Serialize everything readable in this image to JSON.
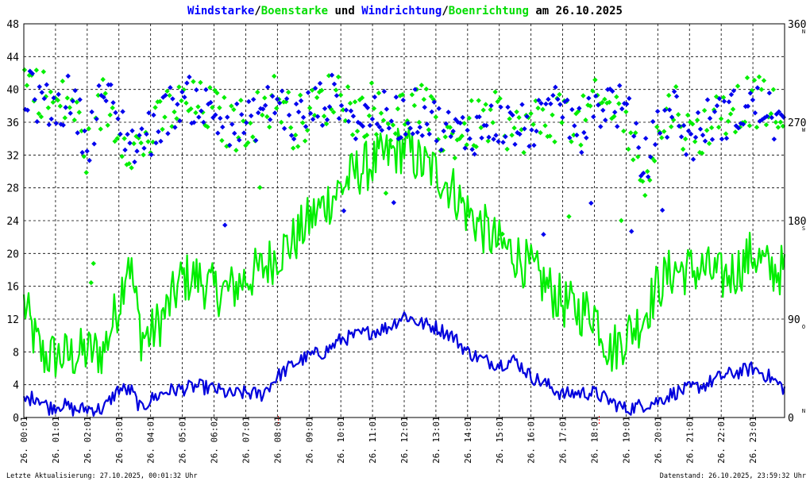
{
  "chart_data": {
    "type": "line",
    "title_parts": [
      {
        "text": "Windstarke",
        "color": "#0000ff"
      },
      {
        "text": "/",
        "color": "#000000"
      },
      {
        "text": "Boenstarke",
        "color": "#00dd00"
      },
      {
        "text": " und ",
        "color": "#000000"
      },
      {
        "text": "Windrichtung",
        "color": "#0000ff"
      },
      {
        "text": "/",
        "color": "#000000"
      },
      {
        "text": "Boenrichtung",
        "color": "#00dd00"
      },
      {
        "text": " am 26.10.2025",
        "color": "#000000"
      }
    ],
    "ylim_left": [
      0,
      48
    ],
    "yticks_left": [
      0,
      4,
      8,
      12,
      16,
      20,
      24,
      28,
      32,
      36,
      40,
      44,
      48
    ],
    "ylim_right": [
      0,
      360
    ],
    "yticks_right": [
      0,
      90,
      180,
      270,
      360
    ],
    "compass_labels": [
      {
        "deg": 0,
        "label": "N"
      },
      {
        "deg": 90,
        "label": "O"
      },
      {
        "deg": 180,
        "label": "S"
      },
      {
        "deg": 270,
        "label": "W"
      },
      {
        "deg": 360,
        "label": "N"
      }
    ],
    "xlim_hours": [
      0,
      24
    ],
    "x_tick_labels": [
      "26. 00:01",
      "26. 01:01",
      "26. 02:01",
      "26. 03:01",
      "26. 04:01",
      "26. 05:01",
      "26. 06:02",
      "26. 07:01",
      "26. 08:01",
      "26. 09:01",
      "26. 10:01",
      "26. 11:01",
      "26. 12:01",
      "26. 13:01",
      "26. 14:01",
      "26. 15:01",
      "26. 16:01",
      "26. 17:01",
      "26. 18:01",
      "26. 19:01",
      "26. 20:01",
      "26. 21:01",
      "26. 22:01",
      "26. 23:01"
    ],
    "grid": true,
    "colors": {
      "wind": "#0000dd",
      "gust": "#00ee00",
      "wind_dir": "#0000ee",
      "gust_dir": "#00ee00",
      "marker": "#ff0000"
    },
    "series": [
      {
        "name": "Windstarke",
        "anchors": [
          [
            0,
            2
          ],
          [
            0.4,
            2.6
          ],
          [
            0.8,
            1.2
          ],
          [
            1.2,
            1.6
          ],
          [
            1.6,
            0.9
          ],
          [
            2,
            1.1
          ],
          [
            2.5,
            1
          ],
          [
            3,
            3.5
          ],
          [
            3.4,
            3.2
          ],
          [
            3.7,
            1
          ],
          [
            4,
            2.2
          ],
          [
            4.5,
            3.2
          ],
          [
            5,
            3.5
          ],
          [
            5.5,
            3.8
          ],
          [
            6,
            3.5
          ],
          [
            6.5,
            2.8
          ],
          [
            7,
            3
          ],
          [
            7.5,
            2.8
          ],
          [
            8,
            5
          ],
          [
            8.5,
            6.5
          ],
          [
            9,
            7.5
          ],
          [
            9.5,
            8
          ],
          [
            10,
            9.5
          ],
          [
            10.5,
            10
          ],
          [
            11,
            10.5
          ],
          [
            11.5,
            11
          ],
          [
            12,
            12.5
          ],
          [
            12.5,
            11.5
          ],
          [
            13,
            11
          ],
          [
            13.5,
            10
          ],
          [
            14,
            8
          ],
          [
            14.5,
            7
          ],
          [
            15,
            6.5
          ],
          [
            15.5,
            7
          ],
          [
            16,
            5
          ],
          [
            16.5,
            4
          ],
          [
            17,
            2.8
          ],
          [
            17.5,
            3
          ],
          [
            18,
            3
          ],
          [
            18.5,
            2
          ],
          [
            19,
            1
          ],
          [
            19.5,
            1.5
          ],
          [
            20,
            2
          ],
          [
            20.5,
            3
          ],
          [
            21,
            3.5
          ],
          [
            21.5,
            4
          ],
          [
            22,
            5
          ],
          [
            22.5,
            5.5
          ],
          [
            23,
            6
          ],
          [
            23.5,
            5
          ],
          [
            24,
            3.5
          ]
        ],
        "amplitude": 0.9
      },
      {
        "name": "Boenstarke",
        "anchors": [
          [
            0,
            14
          ],
          [
            0.3,
            10
          ],
          [
            0.6,
            7.5
          ],
          [
            1,
            7.5
          ],
          [
            1.5,
            7.5
          ],
          [
            2,
            8
          ],
          [
            2.5,
            8
          ],
          [
            3,
            14
          ],
          [
            3.3,
            20
          ],
          [
            3.7,
            10
          ],
          [
            4,
            10
          ],
          [
            4.5,
            13
          ],
          [
            5,
            17
          ],
          [
            5.5,
            17
          ],
          [
            6,
            15.5
          ],
          [
            6.5,
            15.5
          ],
          [
            7,
            17
          ],
          [
            7.5,
            18
          ],
          [
            8,
            20
          ],
          [
            8.5,
            21.5
          ],
          [
            9,
            24
          ],
          [
            9.5,
            26
          ],
          [
            10,
            28
          ],
          [
            10.5,
            30
          ],
          [
            11,
            31
          ],
          [
            11.5,
            32
          ],
          [
            12,
            33
          ],
          [
            12.5,
            31
          ],
          [
            13,
            30
          ],
          [
            13.5,
            28
          ],
          [
            14,
            25
          ],
          [
            14.5,
            23
          ],
          [
            15,
            21
          ],
          [
            15.5,
            20
          ],
          [
            16,
            18
          ],
          [
            16.5,
            16
          ],
          [
            17,
            14
          ],
          [
            17.5,
            13
          ],
          [
            18,
            13
          ],
          [
            18.5,
            8
          ],
          [
            19,
            10
          ],
          [
            19.5,
            12
          ],
          [
            20,
            16
          ],
          [
            20.5,
            18
          ],
          [
            21,
            18
          ],
          [
            21.5,
            18
          ],
          [
            22,
            17
          ],
          [
            22.5,
            18
          ],
          [
            23,
            20
          ],
          [
            23.5,
            18
          ],
          [
            24,
            18
          ]
        ],
        "amplitude": 3.2
      }
    ],
    "direction_series": [
      {
        "name": "Windrichtung",
        "anchors": [
          [
            0,
            300
          ],
          [
            0.5,
            290
          ],
          [
            1,
            280
          ],
          [
            1.5,
            295
          ],
          [
            2,
            250
          ],
          [
            2.5,
            300
          ],
          [
            3,
            270
          ],
          [
            3.5,
            250
          ],
          [
            4,
            260
          ],
          [
            4.5,
            280
          ],
          [
            5,
            290
          ],
          [
            5.5,
            290
          ],
          [
            6,
            275
          ],
          [
            6.5,
            270
          ],
          [
            7,
            265
          ],
          [
            7.5,
            280
          ],
          [
            8,
            290
          ],
          [
            8.5,
            270
          ],
          [
            9,
            280
          ],
          [
            9.5,
            290
          ],
          [
            10,
            295
          ],
          [
            10.5,
            270
          ],
          [
            11,
            280
          ],
          [
            11.5,
            275
          ],
          [
            12,
            275
          ],
          [
            12.5,
            280
          ],
          [
            13,
            270
          ],
          [
            13.5,
            260
          ],
          [
            14,
            260
          ],
          [
            14.5,
            265
          ],
          [
            15,
            270
          ],
          [
            15.5,
            265
          ],
          [
            16,
            265
          ],
          [
            16.5,
            275
          ],
          [
            17,
            285
          ],
          [
            17.5,
            260
          ],
          [
            18,
            280
          ],
          [
            18.5,
            290
          ],
          [
            19,
            280
          ],
          [
            19.5,
            230
          ],
          [
            20,
            260
          ],
          [
            20.5,
            285
          ],
          [
            21,
            250
          ],
          [
            21.5,
            270
          ],
          [
            22,
            275
          ],
          [
            22.5,
            280
          ],
          [
            23,
            285
          ],
          [
            23.5,
            280
          ],
          [
            24,
            260
          ]
        ],
        "spread": 22
      },
      {
        "name": "Boenrichtung",
        "anchors": [
          [
            0,
            310
          ],
          [
            0.5,
            300
          ],
          [
            1,
            285
          ],
          [
            1.5,
            290
          ],
          [
            2,
            240
          ],
          [
            2.5,
            290
          ],
          [
            3,
            265
          ],
          [
            3.5,
            245
          ],
          [
            4,
            255
          ],
          [
            4.5,
            280
          ],
          [
            5,
            285
          ],
          [
            5.5,
            285
          ],
          [
            6,
            280
          ],
          [
            6.5,
            265
          ],
          [
            7,
            270
          ],
          [
            7.5,
            280
          ],
          [
            8,
            295
          ],
          [
            8.5,
            270
          ],
          [
            9,
            275
          ],
          [
            9.5,
            290
          ],
          [
            10,
            300
          ],
          [
            10.5,
            275
          ],
          [
            11,
            285
          ],
          [
            11.5,
            270
          ],
          [
            12,
            280
          ],
          [
            12.5,
            285
          ],
          [
            13,
            265
          ],
          [
            13.5,
            255
          ],
          [
            14,
            265
          ],
          [
            14.5,
            270
          ],
          [
            15,
            275
          ],
          [
            15.5,
            260
          ],
          [
            16,
            270
          ],
          [
            16.5,
            270
          ],
          [
            17,
            280
          ],
          [
            17.5,
            265
          ],
          [
            18,
            285
          ],
          [
            18.5,
            285
          ],
          [
            19,
            270
          ],
          [
            19.5,
            220
          ],
          [
            20,
            255
          ],
          [
            20.5,
            290
          ],
          [
            21,
            255
          ],
          [
            21.5,
            265
          ],
          [
            22,
            280
          ],
          [
            22.5,
            285
          ],
          [
            23,
            290
          ],
          [
            23.5,
            285
          ],
          [
            24,
            255
          ]
        ],
        "spread": 24
      }
    ],
    "event_markers_hours": [
      8.03,
      18.15
    ]
  },
  "footer": {
    "left": "Letzte Aktualisierung: 27.10.2025, 00:01:32 Uhr",
    "right": "Datenstand: 26.10.2025, 23:59:32 Uhr"
  }
}
